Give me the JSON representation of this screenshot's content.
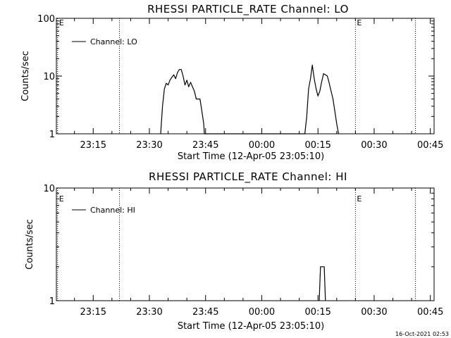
{
  "footer": {
    "timestamp": "16-Oct-2021 02:53"
  },
  "chart_data": [
    {
      "type": "line",
      "title": "RHESSI PARTICLE_RATE Channel: LO",
      "xlabel": "Start Time (12-Apr-05 23:05:10)",
      "ylabel": "Counts/sec",
      "y_scale": "log",
      "ylim": [
        1,
        100
      ],
      "y_ticks": [
        1,
        10,
        100
      ],
      "y_tick_labels": [
        "1",
        "10",
        "100"
      ],
      "xlim": [
        "23:05:10",
        "00:46:00"
      ],
      "x_ticks": [
        "23:15",
        "23:30",
        "23:45",
        "00:00",
        "00:15",
        "00:30",
        "00:45"
      ],
      "grid": false,
      "legend": {
        "position": "top-left",
        "entries": [
          "Channel: LO"
        ]
      },
      "event_markers": [
        {
          "time": "23:22:00",
          "label": ""
        },
        {
          "time": "23:05:30",
          "label": "E"
        },
        {
          "time": "00:25:00",
          "label": "E"
        },
        {
          "time": "00:41:00",
          "label": ""
        }
      ],
      "series": [
        {
          "name": "Channel: LO",
          "time": [
            "23:33:00",
            "23:33:30",
            "23:34:00",
            "23:34:30",
            "23:35:00",
            "23:35:30",
            "23:36:00",
            "23:36:30",
            "23:37:00",
            "23:37:30",
            "23:38:00",
            "23:38:30",
            "23:39:00",
            "23:39:30",
            "23:40:00",
            "23:40:30",
            "23:41:00",
            "23:41:30",
            "23:42:00",
            "23:42:30",
            "23:43:00",
            "23:43:30",
            "23:44:00",
            "23:44:30",
            "23:44:40",
            "00:11:30",
            "00:12:00",
            "00:12:30",
            "00:13:00",
            "00:13:30",
            "00:14:00",
            "00:14:30",
            "00:15:00",
            "00:15:30",
            "00:16:00",
            "00:16:30",
            "00:17:00",
            "00:17:30",
            "00:18:00",
            "00:18:30",
            "00:19:00",
            "00:19:30",
            "00:20:00",
            "00:20:30"
          ],
          "values": [
            1.0,
            3.0,
            6.0,
            7.5,
            7.0,
            8.5,
            9.5,
            10.5,
            9.0,
            11.5,
            13.0,
            13.0,
            10.0,
            7.0,
            8.5,
            6.5,
            7.8,
            6.5,
            5.5,
            4.0,
            4.0,
            4.0,
            2.5,
            1.5,
            1.0,
            1.0,
            2.0,
            6.0,
            9.0,
            15.5,
            9.0,
            6.0,
            4.5,
            5.5,
            8.0,
            11.0,
            10.5,
            10.0,
            7.5,
            5.5,
            4.0,
            2.5,
            1.5,
            1.0
          ]
        }
      ]
    },
    {
      "type": "line",
      "title": "RHESSI PARTICLE_RATE Channel: HI",
      "xlabel": "Start Time (12-Apr-05 23:05:10)",
      "ylabel": "Counts/sec",
      "y_scale": "log",
      "ylim": [
        1,
        10
      ],
      "y_ticks": [
        1,
        10
      ],
      "y_tick_labels": [
        "1",
        "10"
      ],
      "xlim": [
        "23:05:10",
        "00:46:00"
      ],
      "x_ticks": [
        "23:15",
        "23:30",
        "23:45",
        "00:00",
        "00:15",
        "00:30",
        "00:45"
      ],
      "grid": false,
      "legend": {
        "position": "top-left",
        "entries": [
          "Channel: HI"
        ]
      },
      "event_markers": [
        {
          "time": "23:22:00",
          "label": ""
        },
        {
          "time": "23:05:30",
          "label": "E"
        },
        {
          "time": "00:25:00",
          "label": "E"
        },
        {
          "time": "00:41:00",
          "label": ""
        }
      ],
      "series": [
        {
          "name": "Channel: HI",
          "time": [
            "00:15:20",
            "00:15:40",
            "00:16:00",
            "00:16:20",
            "00:16:40",
            "00:17:00"
          ],
          "values": [
            1.0,
            2.0,
            2.0,
            2.0,
            2.0,
            1.0
          ]
        }
      ]
    }
  ]
}
